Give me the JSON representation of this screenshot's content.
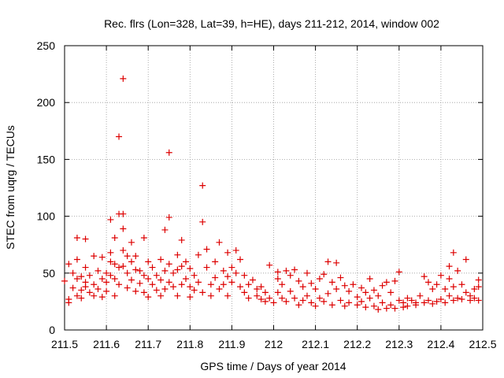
{
  "chart_data": {
    "type": "scatter",
    "title": "Rec. flrs (Lon=328, Lat=39, h=HE), days 211-212, 2014, window 002",
    "xlabel": "GPS time / Days of year 2014",
    "ylabel": "STEC from uqrg / TECUs",
    "xlim": [
      211.5,
      212.5
    ],
    "ylim": [
      0,
      250
    ],
    "xticks": [
      "211.5",
      "211.6",
      "211.7",
      "211.8",
      "211.9",
      "212",
      "212.1",
      "212.2",
      "212.3",
      "212.4",
      "212.5"
    ],
    "yticks": [
      "0",
      "50",
      "100",
      "150",
      "200",
      "250"
    ],
    "grid": true,
    "marker": "plus",
    "color": "#dd0000",
    "series": [
      {
        "points": [
          [
            211.5,
            43
          ],
          [
            211.51,
            58
          ],
          [
            211.51,
            27
          ],
          [
            211.51,
            24
          ],
          [
            211.52,
            50
          ],
          [
            211.52,
            37
          ],
          [
            211.53,
            45
          ],
          [
            211.53,
            30
          ],
          [
            211.53,
            81
          ],
          [
            211.53,
            62
          ],
          [
            211.54,
            47
          ],
          [
            211.54,
            35
          ],
          [
            211.54,
            28
          ],
          [
            211.55,
            80
          ],
          [
            211.55,
            55
          ],
          [
            211.55,
            42
          ],
          [
            211.55,
            38
          ],
          [
            211.56,
            48
          ],
          [
            211.56,
            33
          ],
          [
            211.57,
            65
          ],
          [
            211.57,
            40
          ],
          [
            211.57,
            30
          ],
          [
            211.58,
            52
          ],
          [
            211.58,
            36
          ],
          [
            211.59,
            45
          ],
          [
            211.59,
            29
          ],
          [
            211.59,
            64
          ],
          [
            211.6,
            50
          ],
          [
            211.6,
            42
          ],
          [
            211.6,
            34
          ],
          [
            211.61,
            97
          ],
          [
            211.61,
            68
          ],
          [
            211.61,
            60
          ],
          [
            211.61,
            48
          ],
          [
            211.62,
            58
          ],
          [
            211.62,
            45
          ],
          [
            211.62,
            30
          ],
          [
            211.62,
            81
          ],
          [
            211.63,
            102
          ],
          [
            211.63,
            170
          ],
          [
            211.63,
            55
          ],
          [
            211.63,
            40
          ],
          [
            211.64,
            221
          ],
          [
            211.64,
            102
          ],
          [
            211.64,
            89
          ],
          [
            211.64,
            70
          ],
          [
            211.64,
            56
          ],
          [
            211.65,
            65
          ],
          [
            211.65,
            50
          ],
          [
            211.65,
            37
          ],
          [
            211.66,
            77
          ],
          [
            211.66,
            60
          ],
          [
            211.66,
            44
          ],
          [
            211.67,
            65
          ],
          [
            211.67,
            53
          ],
          [
            211.67,
            34
          ],
          [
            211.68,
            52
          ],
          [
            211.68,
            41
          ],
          [
            211.69,
            81
          ],
          [
            211.69,
            48
          ],
          [
            211.69,
            33
          ],
          [
            211.7,
            60
          ],
          [
            211.7,
            45
          ],
          [
            211.7,
            29
          ],
          [
            211.71,
            55
          ],
          [
            211.71,
            40
          ],
          [
            211.72,
            48
          ],
          [
            211.72,
            35
          ],
          [
            211.73,
            62
          ],
          [
            211.73,
            44
          ],
          [
            211.73,
            30
          ],
          [
            211.74,
            88
          ],
          [
            211.74,
            52
          ],
          [
            211.74,
            36
          ],
          [
            211.75,
            156
          ],
          [
            211.75,
            99
          ],
          [
            211.75,
            58
          ],
          [
            211.75,
            42
          ],
          [
            211.76,
            50
          ],
          [
            211.76,
            38
          ],
          [
            211.77,
            66
          ],
          [
            211.77,
            53
          ],
          [
            211.77,
            30
          ],
          [
            211.78,
            79
          ],
          [
            211.78,
            56
          ],
          [
            211.78,
            40
          ],
          [
            211.79,
            60
          ],
          [
            211.79,
            45
          ],
          [
            211.8,
            54
          ],
          [
            211.8,
            38
          ],
          [
            211.8,
            29
          ],
          [
            211.81,
            48
          ],
          [
            211.81,
            35
          ],
          [
            211.82,
            66
          ],
          [
            211.82,
            42
          ],
          [
            211.83,
            127
          ],
          [
            211.83,
            95
          ],
          [
            211.83,
            33
          ],
          [
            211.84,
            71
          ],
          [
            211.84,
            55
          ],
          [
            211.85,
            40
          ],
          [
            211.85,
            30
          ],
          [
            211.86,
            60
          ],
          [
            211.86,
            46
          ],
          [
            211.87,
            36
          ],
          [
            211.87,
            77
          ],
          [
            211.88,
            52
          ],
          [
            211.88,
            40
          ],
          [
            211.89,
            68
          ],
          [
            211.89,
            47
          ],
          [
            211.89,
            30
          ],
          [
            211.9,
            55
          ],
          [
            211.9,
            42
          ],
          [
            211.91,
            70
          ],
          [
            211.91,
            50
          ],
          [
            211.92,
            38
          ],
          [
            211.92,
            62
          ],
          [
            211.93,
            48
          ],
          [
            211.93,
            33
          ],
          [
            211.94,
            40
          ],
          [
            211.94,
            28
          ],
          [
            211.95,
            44
          ],
          [
            211.96,
            36
          ],
          [
            211.96,
            30
          ],
          [
            211.97,
            38
          ],
          [
            211.97,
            27
          ],
          [
            211.98,
            33
          ],
          [
            211.98,
            25
          ],
          [
            211.99,
            57
          ],
          [
            211.99,
            28
          ],
          [
            212.0,
            24
          ],
          [
            212.01,
            51
          ],
          [
            212.01,
            45
          ],
          [
            212.01,
            33
          ],
          [
            212.02,
            40
          ],
          [
            212.02,
            28
          ],
          [
            212.03,
            52
          ],
          [
            212.03,
            25
          ],
          [
            212.04,
            48
          ],
          [
            212.04,
            34
          ],
          [
            212.05,
            53
          ],
          [
            212.05,
            28
          ],
          [
            212.06,
            43
          ],
          [
            212.06,
            22
          ],
          [
            212.07,
            38
          ],
          [
            212.07,
            26
          ],
          [
            212.08,
            50
          ],
          [
            212.08,
            30
          ],
          [
            212.09,
            41
          ],
          [
            212.09,
            24
          ],
          [
            212.1,
            36
          ],
          [
            212.1,
            21
          ],
          [
            212.11,
            45
          ],
          [
            212.11,
            28
          ],
          [
            212.12,
            49
          ],
          [
            212.12,
            25
          ],
          [
            212.13,
            60
          ],
          [
            212.13,
            32
          ],
          [
            212.14,
            42
          ],
          [
            212.14,
            22
          ],
          [
            212.15,
            59
          ],
          [
            212.15,
            36
          ],
          [
            212.16,
            46
          ],
          [
            212.16,
            26
          ],
          [
            212.17,
            39
          ],
          [
            212.17,
            21
          ],
          [
            212.18,
            34
          ],
          [
            212.18,
            24
          ],
          [
            212.19,
            40
          ],
          [
            212.2,
            29
          ],
          [
            212.2,
            22
          ],
          [
            212.21,
            37
          ],
          [
            212.21,
            25
          ],
          [
            212.22,
            33
          ],
          [
            212.22,
            20
          ],
          [
            212.23,
            45
          ],
          [
            212.23,
            28
          ],
          [
            212.24,
            35
          ],
          [
            212.24,
            21
          ],
          [
            212.25,
            30
          ],
          [
            212.25,
            18
          ],
          [
            212.26,
            39
          ],
          [
            212.26,
            24
          ],
          [
            212.27,
            42
          ],
          [
            212.27,
            19
          ],
          [
            212.28,
            33
          ],
          [
            212.28,
            22
          ],
          [
            212.29,
            43
          ],
          [
            212.29,
            19
          ],
          [
            212.3,
            51
          ],
          [
            212.3,
            26
          ],
          [
            212.31,
            24
          ],
          [
            212.31,
            20
          ],
          [
            212.32,
            28
          ],
          [
            212.32,
            21
          ],
          [
            212.33,
            26
          ],
          [
            212.34,
            24
          ],
          [
            212.34,
            22
          ],
          [
            212.35,
            30
          ],
          [
            212.36,
            47
          ],
          [
            212.36,
            24
          ],
          [
            212.37,
            42
          ],
          [
            212.37,
            26
          ],
          [
            212.38,
            36
          ],
          [
            212.38,
            23
          ],
          [
            212.39,
            40
          ],
          [
            212.39,
            25
          ],
          [
            212.4,
            48
          ],
          [
            212.4,
            27
          ],
          [
            212.41,
            36
          ],
          [
            212.41,
            24
          ],
          [
            212.42,
            56
          ],
          [
            212.42,
            45
          ],
          [
            212.42,
            30
          ],
          [
            212.43,
            68
          ],
          [
            212.43,
            38
          ],
          [
            212.43,
            26
          ],
          [
            212.44,
            52
          ],
          [
            212.44,
            28
          ],
          [
            212.45,
            40
          ],
          [
            212.45,
            27
          ],
          [
            212.46,
            62
          ],
          [
            212.46,
            33
          ],
          [
            212.47,
            30
          ],
          [
            212.47,
            26
          ],
          [
            212.48,
            36
          ],
          [
            212.48,
            28
          ],
          [
            212.49,
            44
          ],
          [
            212.49,
            38
          ],
          [
            212.49,
            26
          ]
        ]
      }
    ]
  }
}
